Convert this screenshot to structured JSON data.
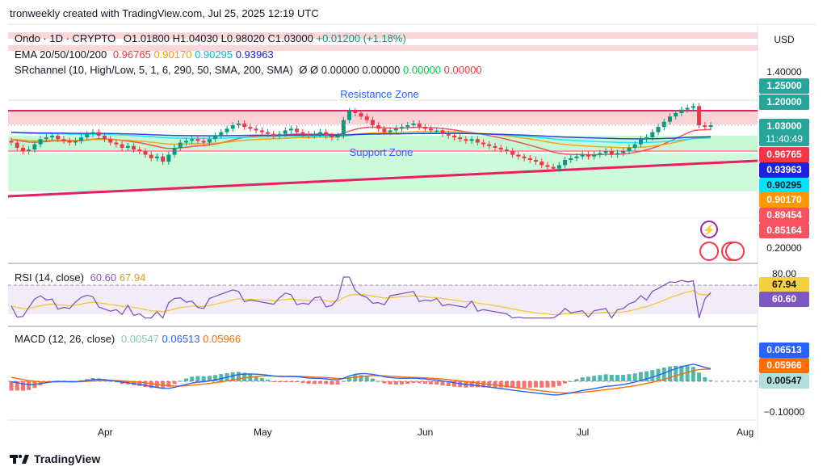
{
  "header": {
    "text": "tronweekly created with TradingView.com, Jul 25, 2025 12:19 UTC"
  },
  "currency": "USD",
  "symbol": {
    "name": "Ondo · 1D · CRYPTO",
    "open": "O1.01800",
    "high": "H1.04030",
    "low": "L0.98020",
    "close": "C1.03000",
    "change": "+0.01200 (+1.18%)"
  },
  "ema": {
    "label": "EMA 20/50/100/200",
    "v20": "0.96765",
    "v50": "0.90170",
    "v100": "0.90295",
    "v200": "0.93963"
  },
  "srchannel": {
    "label": "SRchannel (10, High/Low, 5, 1, 6, 290, 50, SMA, 200, SMA)",
    "sym": "Ø Ø",
    "a": "0.00000",
    "b": "0.00000",
    "c": "0.00000",
    "d": "0.00000"
  },
  "zones": {
    "resistance": "Resistance Zone",
    "support": "Support Zone"
  },
  "price_axis": {
    "top": "1.40000",
    "bottom": "0.20000",
    "tags": [
      {
        "value": "1.25000",
        "color": "#26a69a"
      },
      {
        "value": "1.20000",
        "color": "#26a69a"
      },
      {
        "value": "1.03000",
        "color": "#26a69a",
        "sub": "11:40:49"
      },
      {
        "value": "0.96765",
        "color": "#f23645"
      },
      {
        "value": "0.93963",
        "color": "#1e22e0"
      },
      {
        "value": "0.90295",
        "color": "#00e5ff"
      },
      {
        "value": "0.90170",
        "color": "#ff9800"
      },
      {
        "value": "0.89454",
        "color": "#f7525f"
      },
      {
        "value": "0.85164",
        "color": "#f7525f"
      }
    ]
  },
  "rsi": {
    "label": "RSI (14, close)",
    "v1": "60.60",
    "v2": "67.94",
    "top": "80.00"
  },
  "macd": {
    "label": "MACD (12, 26, close)",
    "hist": "0.00547",
    "macd": "0.06513",
    "signal": "0.05966",
    "bottom": "−0.10000"
  },
  "x_labels": [
    "Apr",
    "May",
    "Jun",
    "Jul",
    "Aug"
  ],
  "footer": {
    "brand": "TradingView"
  },
  "chart_data": {
    "type": "candlestick",
    "symbol": "Ondo",
    "interval": "1D",
    "x_ticks": [
      "Apr",
      "May",
      "Jun",
      "Jul",
      "Aug"
    ],
    "close": [
      0.93,
      0.9,
      0.88,
      0.89,
      0.92,
      0.95,
      0.96,
      0.97,
      0.95,
      0.94,
      0.93,
      0.94,
      0.96,
      0.98,
      0.99,
      0.97,
      0.95,
      0.93,
      0.92,
      0.9,
      0.91,
      0.89,
      0.88,
      0.86,
      0.84,
      0.85,
      0.82,
      0.86,
      0.9,
      0.93,
      0.94,
      0.95,
      0.94,
      0.93,
      0.95,
      0.97,
      0.99,
      1.01,
      1.03,
      1.04,
      1.02,
      1.01,
      1.0,
      0.99,
      0.98,
      0.97,
      0.98,
      1.0,
      1.01,
      0.99,
      0.98,
      0.97,
      0.98,
      0.99,
      0.97,
      0.96,
      0.97,
      1.06,
      1.11,
      1.1,
      1.08,
      1.06,
      1.03,
      1.01,
      0.99,
      1.0,
      1.01,
      1.02,
      1.03,
      1.04,
      1.02,
      1.01,
      1.0,
      1.0,
      0.98,
      0.97,
      0.96,
      0.95,
      0.94,
      0.95,
      0.93,
      0.92,
      0.91,
      0.9,
      0.89,
      0.88,
      0.86,
      0.85,
      0.84,
      0.83,
      0.82,
      0.8,
      0.79,
      0.78,
      0.8,
      0.83,
      0.84,
      0.85,
      0.86,
      0.85,
      0.86,
      0.87,
      0.88,
      0.86,
      0.87,
      0.88,
      0.9,
      0.92,
      0.95,
      0.96,
      0.99,
      1.02,
      1.05,
      1.08,
      1.1,
      1.12,
      1.13,
      1.14,
      1.03,
      1.02,
      1.03
    ],
    "ema": [
      {
        "period": 20,
        "value": 0.96765,
        "color": "#f23645"
      },
      {
        "period": 50,
        "value": 0.9017,
        "color": "#ff9800"
      },
      {
        "period": 100,
        "value": 0.90295,
        "color": "#00e5ff"
      },
      {
        "period": 200,
        "value": 0.93963,
        "color": "#1e22e0"
      }
    ],
    "rsi": {
      "period": 14,
      "value": 60.6,
      "ma": 67.94
    },
    "macd": {
      "fast": 12,
      "slow": 26,
      "histogram": 0.00547,
      "macd": 0.06513,
      "signal": 0.05966
    }
  }
}
